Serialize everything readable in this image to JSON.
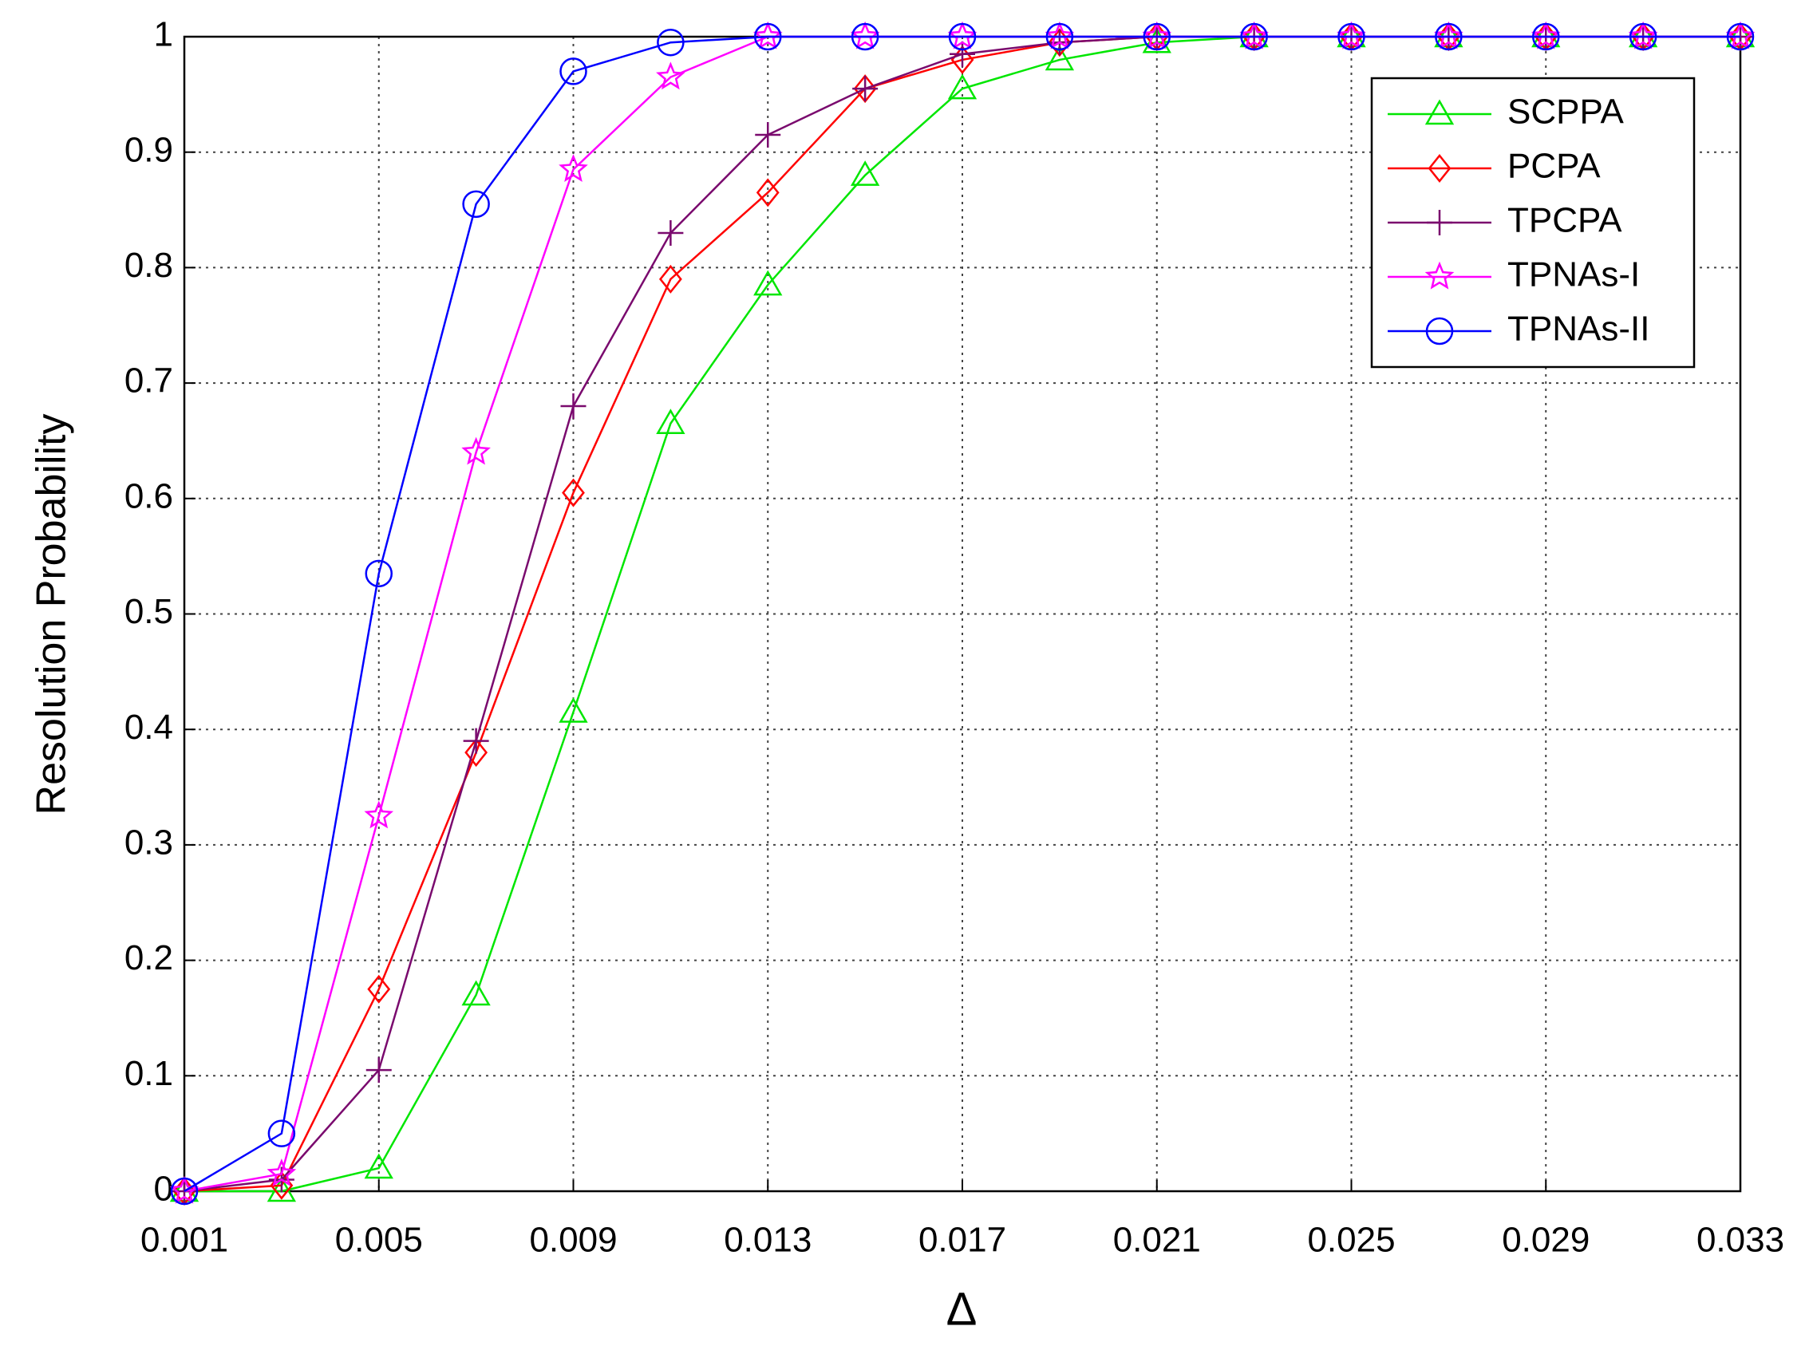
{
  "chart_data": {
    "type": "line",
    "xlabel": "Δ",
    "ylabel": "Resolution Probability",
    "x": [
      0.001,
      0.003,
      0.005,
      0.007,
      0.009,
      0.011,
      0.013,
      0.015,
      0.017,
      0.019,
      0.021,
      0.023,
      0.025,
      0.027,
      0.029,
      0.031,
      0.033
    ],
    "series": [
      {
        "name": "SCPPA",
        "color": "#00e600",
        "marker": "triangle",
        "values": [
          0,
          0,
          0.02,
          0.17,
          0.415,
          0.665,
          0.785,
          0.88,
          0.955,
          0.98,
          0.995,
          1,
          1,
          1,
          1,
          1,
          1
        ]
      },
      {
        "name": "PCPA",
        "color": "#ff0000",
        "marker": "diamond",
        "values": [
          0,
          0.005,
          0.175,
          0.38,
          0.605,
          0.79,
          0.865,
          0.955,
          0.98,
          0.995,
          1,
          1,
          1,
          1,
          1,
          1,
          1
        ]
      },
      {
        "name": "TPCPA",
        "color": "#7a0a6e",
        "marker": "plus",
        "values": [
          0,
          0.01,
          0.105,
          0.39,
          0.68,
          0.83,
          0.915,
          0.955,
          0.985,
          0.995,
          1,
          1,
          1,
          1,
          1,
          1,
          1
        ]
      },
      {
        "name": "TPNAs-I",
        "color": "#ff00ff",
        "marker": "star",
        "values": [
          0,
          0.015,
          0.325,
          0.64,
          0.885,
          0.965,
          1,
          1,
          1,
          1,
          1,
          1,
          1,
          1,
          1,
          1,
          1
        ]
      },
      {
        "name": "TPNAs-II",
        "color": "#0000ff",
        "marker": "circle",
        "values": [
          0,
          0.05,
          0.535,
          0.855,
          0.97,
          0.995,
          1,
          1,
          1,
          1,
          1,
          1,
          1,
          1,
          1,
          1,
          1
        ]
      }
    ],
    "xlim": [
      0.001,
      0.033
    ],
    "xticks": [
      0.001,
      0.005,
      0.009,
      0.013,
      0.017,
      0.021,
      0.025,
      0.029,
      0.033
    ],
    "ylim": [
      0,
      1
    ],
    "yticks": [
      0,
      0.1,
      0.2,
      0.3,
      0.4,
      0.5,
      0.6,
      0.7,
      0.8,
      0.9,
      1
    ],
    "grid": true,
    "legend": "upper right"
  }
}
